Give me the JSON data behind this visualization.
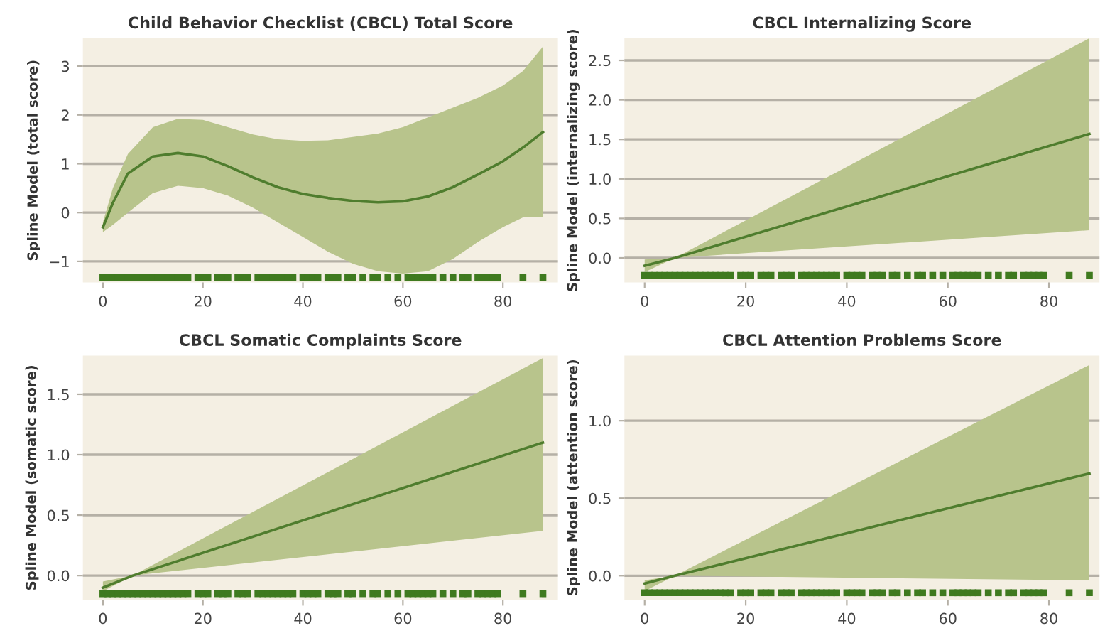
{
  "chart_data": [
    {
      "type": "line",
      "title": "Child Behavior Checklist (CBCL) Total Score",
      "ylabel": "Spline Model (total score)",
      "xlim": [
        -4,
        91
      ],
      "ylim": [
        -1.43,
        3.57
      ],
      "xticks": [
        0,
        20,
        40,
        60,
        80
      ],
      "yticks": [
        {
          "value": -1,
          "label": "−1"
        },
        0,
        1,
        2,
        3
      ],
      "grid": "y",
      "series": [
        {
          "type": "line",
          "color": "#4f7d2e",
          "x": [
            0,
            2,
            5,
            10,
            15,
            20,
            25,
            30,
            35,
            40,
            45,
            50,
            55,
            60,
            65,
            70,
            75,
            80,
            84,
            88
          ],
          "values": [
            -0.3,
            0.2,
            0.8,
            1.15,
            1.22,
            1.15,
            0.95,
            0.72,
            0.52,
            0.38,
            0.3,
            0.24,
            0.21,
            0.23,
            0.33,
            0.52,
            0.78,
            1.05,
            1.33,
            1.65
          ],
          "lower": [
            -0.4,
            -0.25,
            0.0,
            0.4,
            0.55,
            0.5,
            0.35,
            0.1,
            -0.2,
            -0.5,
            -0.8,
            -1.05,
            -1.2,
            -1.25,
            -1.2,
            -0.95,
            -0.6,
            -0.3,
            -0.1,
            -0.1
          ],
          "upper": [
            -0.2,
            0.5,
            1.2,
            1.75,
            1.92,
            1.9,
            1.75,
            1.6,
            1.5,
            1.47,
            1.48,
            1.55,
            1.62,
            1.75,
            1.95,
            2.15,
            2.35,
            2.6,
            2.9,
            3.4
          ]
        },
        {
          "type": "scatter",
          "marker": "square",
          "color": "#3f7a1f",
          "x": [
            0,
            1,
            2,
            3,
            4,
            5,
            6,
            7,
            8,
            9,
            10,
            11,
            12,
            13,
            14,
            15,
            16,
            17,
            19,
            20,
            21,
            23,
            24,
            25,
            27,
            28,
            29,
            31,
            32,
            33,
            34,
            35,
            36,
            37,
            38,
            40,
            41,
            42,
            43,
            45,
            46,
            47,
            49,
            50,
            52,
            54,
            55,
            57,
            59,
            61,
            62,
            63,
            64,
            65,
            66,
            68,
            70,
            72,
            73,
            75,
            76,
            77,
            78,
            79,
            84,
            88
          ],
          "values": [
            -1.33,
            -1.33,
            -1.33,
            -1.33,
            -1.33,
            -1.33,
            -1.33,
            -1.33,
            -1.33,
            -1.33,
            -1.33,
            -1.33,
            -1.33,
            -1.33,
            -1.33,
            -1.33,
            -1.33,
            -1.33,
            -1.33,
            -1.33,
            -1.33,
            -1.33,
            -1.33,
            -1.33,
            -1.33,
            -1.33,
            -1.33,
            -1.33,
            -1.33,
            -1.33,
            -1.33,
            -1.33,
            -1.33,
            -1.33,
            -1.33,
            -1.33,
            -1.33,
            -1.33,
            -1.33,
            -1.33,
            -1.33,
            -1.33,
            -1.33,
            -1.33,
            -1.33,
            -1.33,
            -1.33,
            -1.33,
            -1.33,
            -1.33,
            -1.33,
            -1.33,
            -1.33,
            -1.33,
            -1.33,
            -1.33,
            -1.33,
            -1.33,
            -1.33,
            -1.33,
            -1.33,
            -1.33,
            -1.33,
            -1.33,
            -1.33,
            -1.33
          ]
        }
      ]
    },
    {
      "type": "line",
      "title": "CBCL Internalizing Score",
      "ylabel": "Spline Model (internalizing score)",
      "xlim": [
        -4,
        90
      ],
      "ylim": [
        -0.31,
        2.78
      ],
      "xticks": [
        0,
        20,
        40,
        60,
        80
      ],
      "yticks": [
        {
          "value": 0,
          "label": "0.0"
        },
        0.5,
        {
          "value": 1,
          "label": "1.0"
        },
        1.5,
        {
          "value": 2,
          "label": "2.0"
        },
        2.5
      ],
      "grid": "y",
      "series": [
        {
          "type": "line",
          "color": "#4f7d2e",
          "x": [
            0,
            6,
            88
          ],
          "values": [
            -0.1,
            0.0,
            1.57
          ],
          "lower": [
            -0.18,
            0.0,
            0.35
          ],
          "upper": [
            -0.02,
            0.0,
            2.78
          ]
        },
        {
          "type": "scatter",
          "marker": "square",
          "color": "#3f7a1f",
          "x": [
            0,
            1,
            2,
            3,
            4,
            5,
            6,
            7,
            8,
            9,
            10,
            11,
            12,
            13,
            14,
            15,
            16,
            17,
            19,
            20,
            21,
            23,
            24,
            25,
            27,
            28,
            29,
            31,
            32,
            33,
            34,
            35,
            36,
            37,
            38,
            40,
            41,
            42,
            43,
            45,
            46,
            47,
            49,
            50,
            52,
            54,
            55,
            57,
            59,
            61,
            62,
            63,
            64,
            65,
            66,
            68,
            70,
            72,
            73,
            75,
            76,
            77,
            78,
            79,
            84,
            88
          ],
          "values": [
            -0.22,
            -0.22,
            -0.22,
            -0.22,
            -0.22,
            -0.22,
            -0.22,
            -0.22,
            -0.22,
            -0.22,
            -0.22,
            -0.22,
            -0.22,
            -0.22,
            -0.22,
            -0.22,
            -0.22,
            -0.22,
            -0.22,
            -0.22,
            -0.22,
            -0.22,
            -0.22,
            -0.22,
            -0.22,
            -0.22,
            -0.22,
            -0.22,
            -0.22,
            -0.22,
            -0.22,
            -0.22,
            -0.22,
            -0.22,
            -0.22,
            -0.22,
            -0.22,
            -0.22,
            -0.22,
            -0.22,
            -0.22,
            -0.22,
            -0.22,
            -0.22,
            -0.22,
            -0.22,
            -0.22,
            -0.22,
            -0.22,
            -0.22,
            -0.22,
            -0.22,
            -0.22,
            -0.22,
            -0.22,
            -0.22,
            -0.22,
            -0.22,
            -0.22,
            -0.22,
            -0.22,
            -0.22,
            -0.22,
            -0.22,
            -0.22,
            -0.22
          ]
        }
      ]
    },
    {
      "type": "line",
      "title": "CBCL Somatic Complaints Score",
      "ylabel": "Spline Model (somatic score)",
      "xlim": [
        -4,
        91
      ],
      "ylim": [
        -0.2,
        1.82
      ],
      "xticks": [
        0,
        20,
        40,
        60,
        80
      ],
      "yticks": [
        {
          "value": 0,
          "label": "0.0"
        },
        0.5,
        {
          "value": 1,
          "label": "1.0"
        },
        1.5
      ],
      "grid": "y",
      "series": [
        {
          "type": "line",
          "color": "#4f7d2e",
          "x": [
            0,
            6,
            88
          ],
          "values": [
            -0.1,
            0.0,
            1.1
          ],
          "lower": [
            -0.13,
            0.0,
            0.37
          ],
          "upper": [
            -0.05,
            0.0,
            1.8
          ]
        },
        {
          "type": "scatter",
          "marker": "square",
          "color": "#3f7a1f",
          "x": [
            0,
            1,
            2,
            3,
            4,
            5,
            6,
            7,
            8,
            9,
            10,
            11,
            12,
            13,
            14,
            15,
            16,
            17,
            19,
            20,
            21,
            23,
            24,
            25,
            27,
            28,
            29,
            31,
            32,
            33,
            34,
            35,
            36,
            37,
            38,
            40,
            41,
            42,
            43,
            45,
            46,
            47,
            49,
            50,
            52,
            54,
            55,
            57,
            59,
            61,
            62,
            63,
            64,
            65,
            66,
            68,
            70,
            72,
            73,
            75,
            76,
            77,
            78,
            79,
            84,
            88
          ],
          "values": [
            -0.15,
            -0.15,
            -0.15,
            -0.15,
            -0.15,
            -0.15,
            -0.15,
            -0.15,
            -0.15,
            -0.15,
            -0.15,
            -0.15,
            -0.15,
            -0.15,
            -0.15,
            -0.15,
            -0.15,
            -0.15,
            -0.15,
            -0.15,
            -0.15,
            -0.15,
            -0.15,
            -0.15,
            -0.15,
            -0.15,
            -0.15,
            -0.15,
            -0.15,
            -0.15,
            -0.15,
            -0.15,
            -0.15,
            -0.15,
            -0.15,
            -0.15,
            -0.15,
            -0.15,
            -0.15,
            -0.15,
            -0.15,
            -0.15,
            -0.15,
            -0.15,
            -0.15,
            -0.15,
            -0.15,
            -0.15,
            -0.15,
            -0.15,
            -0.15,
            -0.15,
            -0.15,
            -0.15,
            -0.15,
            -0.15,
            -0.15,
            -0.15,
            -0.15,
            -0.15,
            -0.15,
            -0.15,
            -0.15,
            -0.15,
            -0.15,
            -0.15
          ]
        }
      ]
    },
    {
      "type": "line",
      "title": "CBCL Attention Problems Score",
      "ylabel": "Spline Model (attention score)",
      "xlim": [
        -4,
        90
      ],
      "ylim": [
        -0.155,
        1.42
      ],
      "xticks": [
        0,
        20,
        40,
        60,
        80
      ],
      "yticks": [
        {
          "value": 0,
          "label": "0.0"
        },
        0.5,
        {
          "value": 1,
          "label": "1.0"
        }
      ],
      "grid": "y",
      "series": [
        {
          "type": "line",
          "color": "#4f7d2e",
          "x": [
            0,
            6,
            88
          ],
          "values": [
            -0.05,
            0.0,
            0.66
          ],
          "lower": [
            -0.1,
            0.0,
            -0.03
          ],
          "upper": [
            -0.03,
            0.0,
            1.36
          ]
        },
        {
          "type": "scatter",
          "marker": "square",
          "color": "#3f7a1f",
          "x": [
            0,
            1,
            2,
            3,
            4,
            5,
            6,
            7,
            8,
            9,
            10,
            11,
            12,
            13,
            14,
            15,
            16,
            17,
            19,
            20,
            21,
            23,
            24,
            25,
            27,
            28,
            29,
            31,
            32,
            33,
            34,
            35,
            36,
            37,
            38,
            40,
            41,
            42,
            43,
            45,
            46,
            47,
            49,
            50,
            52,
            54,
            55,
            57,
            59,
            61,
            62,
            63,
            64,
            65,
            66,
            68,
            70,
            72,
            73,
            75,
            76,
            77,
            78,
            79,
            84,
            88
          ],
          "values": [
            -0.11,
            -0.11,
            -0.11,
            -0.11,
            -0.11,
            -0.11,
            -0.11,
            -0.11,
            -0.11,
            -0.11,
            -0.11,
            -0.11,
            -0.11,
            -0.11,
            -0.11,
            -0.11,
            -0.11,
            -0.11,
            -0.11,
            -0.11,
            -0.11,
            -0.11,
            -0.11,
            -0.11,
            -0.11,
            -0.11,
            -0.11,
            -0.11,
            -0.11,
            -0.11,
            -0.11,
            -0.11,
            -0.11,
            -0.11,
            -0.11,
            -0.11,
            -0.11,
            -0.11,
            -0.11,
            -0.11,
            -0.11,
            -0.11,
            -0.11,
            -0.11,
            -0.11,
            -0.11,
            -0.11,
            -0.11,
            -0.11,
            -0.11,
            -0.11,
            -0.11,
            -0.11,
            -0.11,
            -0.11,
            -0.11,
            -0.11,
            -0.11,
            -0.11,
            -0.11,
            -0.11,
            -0.11,
            -0.11,
            -0.11,
            -0.11,
            -0.11
          ]
        }
      ]
    }
  ]
}
